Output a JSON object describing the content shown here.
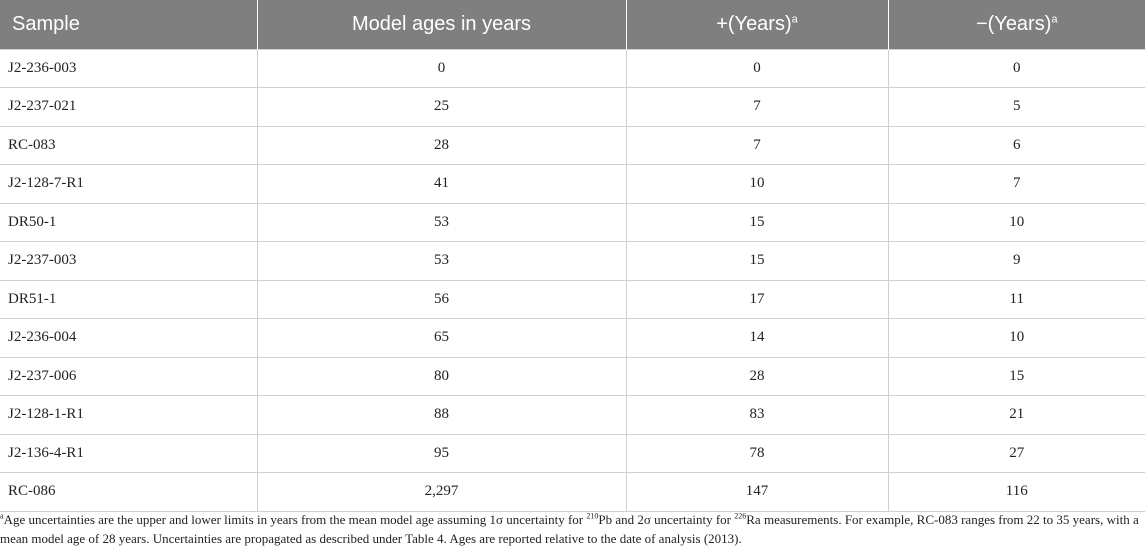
{
  "table": {
    "headers": {
      "sample": "Sample",
      "model_ages": "Model ages in years",
      "plus_years": "+(Years)",
      "minus_years": "−(Years)",
      "footnote_marker": "a"
    },
    "rows": [
      {
        "sample": "J2-236-003",
        "age": "0",
        "plus": "0",
        "minus": "0"
      },
      {
        "sample": "J2-237-021",
        "age": "25",
        "plus": "7",
        "minus": "5"
      },
      {
        "sample": "RC-083",
        "age": "28",
        "plus": "7",
        "minus": "6"
      },
      {
        "sample": "J2-128-7-R1",
        "age": "41",
        "plus": "10",
        "minus": "7"
      },
      {
        "sample": "DR50-1",
        "age": "53",
        "plus": "15",
        "minus": "10"
      },
      {
        "sample": "J2-237-003",
        "age": "53",
        "plus": "15",
        "minus": "9"
      },
      {
        "sample": "DR51-1",
        "age": "56",
        "plus": "17",
        "minus": "11"
      },
      {
        "sample": "J2-236-004",
        "age": "65",
        "plus": "14",
        "minus": "10"
      },
      {
        "sample": "J2-237-006",
        "age": "80",
        "plus": "28",
        "minus": "15"
      },
      {
        "sample": "J2-128-1-R1",
        "age": "88",
        "plus": "83",
        "minus": "21"
      },
      {
        "sample": "J2-136-4-R1",
        "age": "95",
        "plus": "78",
        "minus": "27"
      },
      {
        "sample": "RC-086",
        "age": "2,297",
        "plus": "147",
        "minus": "116"
      }
    ]
  },
  "footnote": {
    "marker": "a",
    "text_part1": "Age uncertainties are the upper and lower limits in years from the mean model age assuming 1σ uncertainty for ",
    "iso1_mass": "210",
    "iso1_element": "Pb",
    "text_part2": " and 2σ uncertainty for ",
    "iso2_mass": "226",
    "iso2_element": "Ra",
    "text_part3": " measurements. For example, RC-083 ranges from 22 to 35 years, with a mean model age of 28 years. Uncertainties are propagated as described under Table 4. Ages are reported relative to the date of analysis (2013)."
  }
}
